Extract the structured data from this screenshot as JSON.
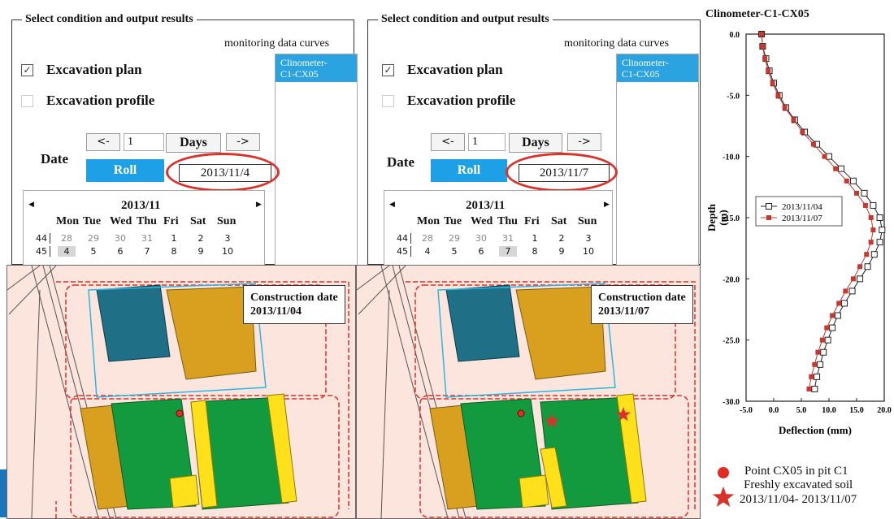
{
  "panels": [
    {
      "group_title": "Select condition and output results",
      "monitoring_label": "monitoring data curves",
      "list_item": "Clinometer-\nC1-CX05",
      "excavation_plan": "Excavation plan",
      "excavation_profile": "Excavation profile",
      "date_label": "Date",
      "prev_btn": "<-",
      "step_value": "1",
      "days_btn": "Days",
      "next_btn": "->",
      "roll_btn": "Roll",
      "selected_date": "2013/11/4",
      "calendar": {
        "month": "2013/11",
        "weekdays": [
          "Mon",
          "Tue",
          "Wed",
          "Thu",
          "Fri",
          "Sat",
          "Sun"
        ],
        "rows": [
          {
            "week": "44",
            "days": [
              "28",
              "29",
              "30",
              "31",
              "1",
              "2",
              "3"
            ]
          },
          {
            "week": "45",
            "days": [
              "4",
              "5",
              "6",
              "7",
              "8",
              "9",
              "10"
            ]
          }
        ],
        "selected_index": 0
      },
      "construction_label": "Construction date",
      "construction_date": "2013/11/04"
    },
    {
      "group_title": "Select condition and output results",
      "monitoring_label": "monitoring data curves",
      "list_item": "Clinometer-\nC1-CX05",
      "excavation_plan": "Excavation plan",
      "excavation_profile": "Excavation profile",
      "date_label": "Date",
      "prev_btn": "<-",
      "step_value": "1",
      "days_btn": "Days",
      "next_btn": "->",
      "roll_btn": "Roll",
      "selected_date": "2013/11/7",
      "calendar": {
        "month": "2013/11",
        "weekdays": [
          "Mon",
          "Tue",
          "Wed",
          "Thu",
          "Fri",
          "Sat",
          "Sun"
        ],
        "rows": [
          {
            "week": "44",
            "days": [
              "28",
              "29",
              "30",
              "31",
              "1",
              "2",
              "3"
            ]
          },
          {
            "week": "45",
            "days": [
              "4",
              "5",
              "6",
              "7",
              "8",
              "9",
              "10"
            ]
          }
        ],
        "selected_index": 3
      },
      "construction_label": "Construction date",
      "construction_date": "2013/11/07"
    }
  ],
  "colors": {
    "accent_blue": "#1ea0e6",
    "red": "#d9322a",
    "teal_block": "#1f6f86",
    "orange_block": "#d9a020",
    "green_block": "#139a3e",
    "yellow_block": "#ffe01a",
    "map_bg": "#fbe5dc"
  },
  "legend": {
    "point_label": "Point CX05 in pit C1",
    "soil_label": "Freshly excavated soil",
    "soil_dates": "2013/11/04- 2013/11/07"
  },
  "chart_data": {
    "type": "line",
    "title": "Clinometer-C1-CX05",
    "xlabel": "Deflection (mm)",
    "ylabel": "Depth\n(m)",
    "xlim": [
      -5,
      20
    ],
    "ylim": [
      -30,
      0
    ],
    "xticks": [
      "-5.0",
      "0.0",
      "5.0",
      "10.0",
      "15.0",
      "20.0"
    ],
    "yticks": [
      "0.0",
      "-5.0",
      "-10.0",
      "-15.0",
      "-20.0",
      "-25.0",
      "-30.0"
    ],
    "legend_position": "middle-left",
    "series": [
      {
        "name": "2013/11/04",
        "marker": "open-square",
        "color": "#222222",
        "points": [
          [
            -2.2,
            0
          ],
          [
            -2,
            -1
          ],
          [
            -1.4,
            -2
          ],
          [
            -0.8,
            -3
          ],
          [
            0,
            -4
          ],
          [
            1,
            -5
          ],
          [
            2.2,
            -6
          ],
          [
            3.8,
            -7
          ],
          [
            5.6,
            -8
          ],
          [
            7.8,
            -9
          ],
          [
            10,
            -10
          ],
          [
            12.2,
            -11
          ],
          [
            14.4,
            -12
          ],
          [
            16.4,
            -13
          ],
          [
            18,
            -14
          ],
          [
            19.2,
            -15
          ],
          [
            19.6,
            -16
          ],
          [
            19.2,
            -17
          ],
          [
            18.2,
            -18
          ],
          [
            17,
            -19
          ],
          [
            15.6,
            -20
          ],
          [
            14.2,
            -21
          ],
          [
            12.8,
            -22
          ],
          [
            11.6,
            -23
          ],
          [
            10.6,
            -24
          ],
          [
            9.8,
            -25
          ],
          [
            9,
            -26
          ],
          [
            8.4,
            -27
          ],
          [
            7.8,
            -28
          ],
          [
            7.4,
            -29
          ]
        ]
      },
      {
        "name": "2013/11/07",
        "marker": "filled-square",
        "color": "#c8382e",
        "points": [
          [
            -2.2,
            0
          ],
          [
            -2,
            -1
          ],
          [
            -1.6,
            -2
          ],
          [
            -1,
            -3
          ],
          [
            -0.2,
            -4
          ],
          [
            0.8,
            -5
          ],
          [
            2,
            -6
          ],
          [
            3.6,
            -7
          ],
          [
            5.2,
            -8
          ],
          [
            7.2,
            -9
          ],
          [
            9.2,
            -10
          ],
          [
            11.2,
            -11
          ],
          [
            13.2,
            -12
          ],
          [
            15,
            -13
          ],
          [
            16.6,
            -14
          ],
          [
            17.6,
            -15
          ],
          [
            18,
            -16
          ],
          [
            17.6,
            -17
          ],
          [
            16.8,
            -18
          ],
          [
            15.6,
            -19
          ],
          [
            14.4,
            -20
          ],
          [
            13,
            -21
          ],
          [
            11.8,
            -22
          ],
          [
            10.6,
            -23
          ],
          [
            9.6,
            -24
          ],
          [
            8.8,
            -25
          ],
          [
            8,
            -26
          ],
          [
            7.4,
            -27
          ],
          [
            6.8,
            -28
          ],
          [
            6.4,
            -29
          ]
        ]
      }
    ]
  }
}
